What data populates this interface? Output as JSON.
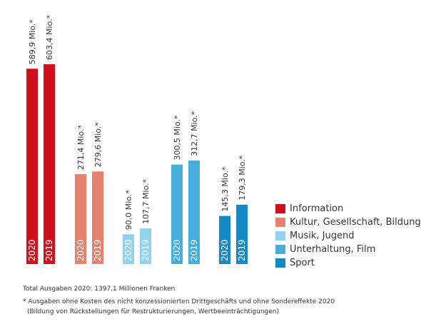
{
  "chart_data": {
    "type": "bar",
    "categories": [
      "2020",
      "2019"
    ],
    "series": [
      {
        "name": "Information",
        "color": "#d0101d",
        "values": [
          589.9,
          603.4
        ],
        "labels": [
          "589,9 Mio.*",
          "603,4 Mio.*"
        ]
      },
      {
        "name": "Kultur, Gesellschaft, Bildung",
        "color": "#e5826d",
        "values": [
          271.4,
          279.6
        ],
        "labels": [
          "271,4 Mio.*",
          "279,6 Mio.*"
        ]
      },
      {
        "name": "Musik, Jugend",
        "color": "#93d2ec",
        "values": [
          90.0,
          107.7
        ],
        "labels": [
          "90,0 Mio.*",
          "107,7 Mio.*"
        ]
      },
      {
        "name": "Unterhaltung, Film",
        "color": "#45aedd",
        "values": [
          300.5,
          312.7
        ],
        "labels": [
          "300,5 Mio.*",
          "312,7 Mio.*"
        ]
      },
      {
        "name": "Sport",
        "color": "#1389c8",
        "values": [
          145.3,
          179.3
        ],
        "labels": [
          "145,3 Mio.*",
          "179,3 Mio.*"
        ]
      }
    ],
    "legend_position": "right",
    "grid": false,
    "ylim": [
      0,
      603.4
    ]
  },
  "footer": {
    "total": "Total Ausgaben 2020: 1397,1 Millionen Franken",
    "note_line1": "* Ausgaben ohne Kosten des nicht konzessionierten Drittgeschäfts und ohne Sondereffekte 2020",
    "note_line2": "(Bildung von Rückstellungen für Restrukturierungen, Wertbeeinträchtigungen)"
  }
}
